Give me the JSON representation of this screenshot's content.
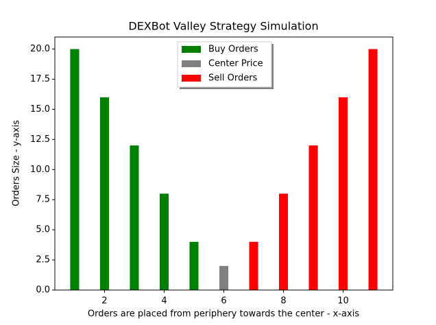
{
  "chart_data": {
    "type": "bar",
    "title": "DEXBot Valley Strategy Simulation",
    "x_label": "Orders are placed from periphery towards the center - x-axis",
    "y_label": "Orders Size - y-axis",
    "series": [
      {
        "name": "Buy Orders",
        "color": "#008000",
        "x": [
          1,
          2,
          3,
          4,
          5
        ],
        "values": [
          20,
          16,
          12,
          8,
          4
        ]
      },
      {
        "name": "Center Price",
        "color": "#808080",
        "x": [
          6
        ],
        "values": [
          2
        ]
      },
      {
        "name": "Sell Orders",
        "color": "#ff0000",
        "x": [
          7,
          8,
          9,
          10,
          11
        ],
        "values": [
          4,
          8,
          12,
          16,
          20
        ]
      }
    ],
    "bar_width": 0.3,
    "xlim": [
      0.335,
      11.665
    ],
    "xticks": [
      2,
      4,
      6,
      8,
      10
    ],
    "ylim": [
      0,
      21
    ],
    "yticks": [
      {
        "value": 0,
        "label": "0.0"
      },
      {
        "value": 2.5,
        "label": "2.5"
      },
      {
        "value": 5,
        "label": "5.0"
      },
      {
        "value": 7.5,
        "label": "7.5"
      },
      {
        "value": 10,
        "label": "10.0"
      },
      {
        "value": 12.5,
        "label": "12.5"
      },
      {
        "value": 15,
        "label": "15.0"
      },
      {
        "value": 17.5,
        "label": "17.5"
      },
      {
        "value": 20,
        "label": "20.0"
      }
    ],
    "legend": "upper center"
  }
}
